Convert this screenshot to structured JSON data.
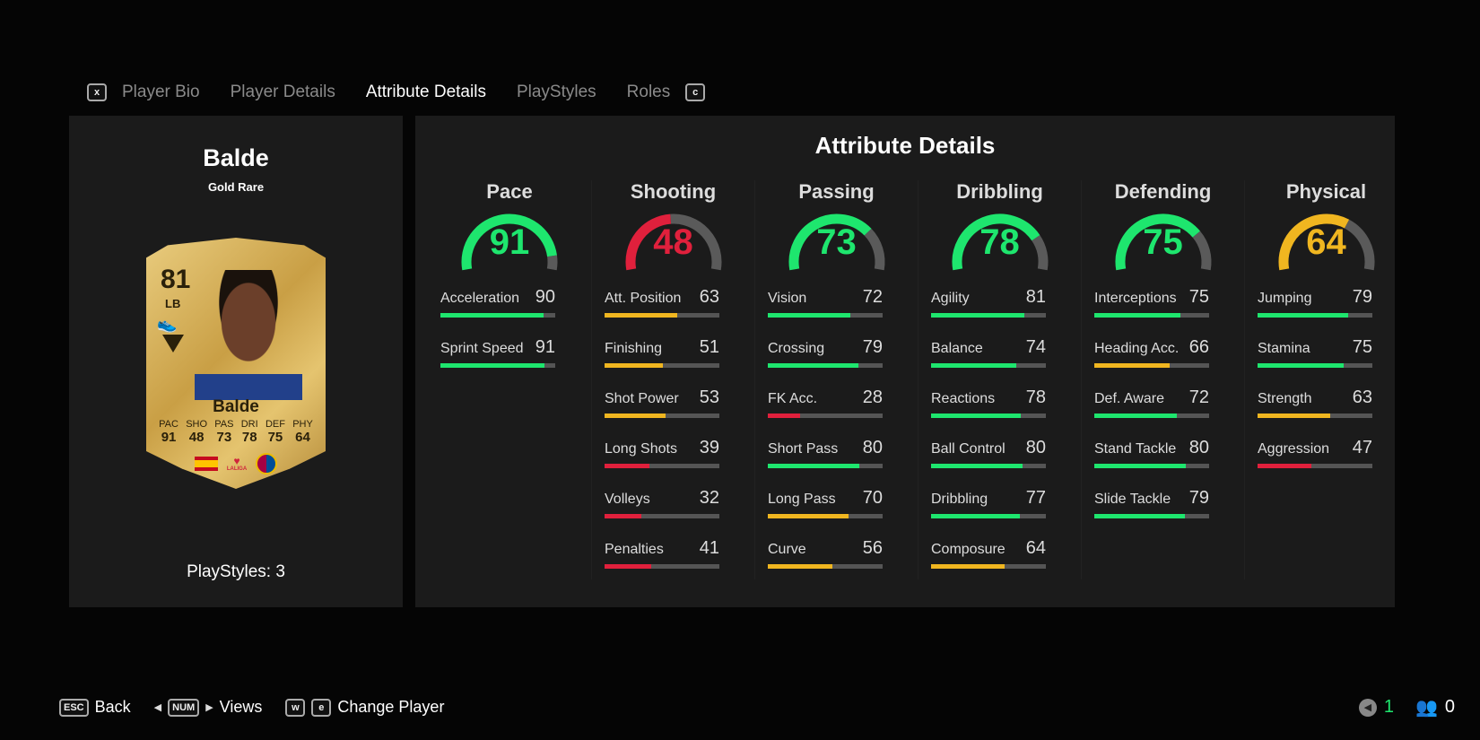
{
  "tabs": {
    "prev_key": "x",
    "next_key": "c",
    "items": [
      {
        "label": "Player Bio"
      },
      {
        "label": "Player Details"
      },
      {
        "label": "Attribute Details",
        "active": true
      },
      {
        "label": "PlayStyles"
      },
      {
        "label": "Roles"
      }
    ]
  },
  "player": {
    "name": "Balde",
    "rarity": "Gold Rare",
    "playstyles": "PlayStyles: 3",
    "card": {
      "overall": "81",
      "position": "LB",
      "name": "Balde",
      "stats": [
        {
          "k": "PAC",
          "v": "91"
        },
        {
          "k": "SHO",
          "v": "48"
        },
        {
          "k": "PAS",
          "v": "73"
        },
        {
          "k": "DRI",
          "v": "78"
        },
        {
          "k": "DEF",
          "v": "75"
        },
        {
          "k": "PHY",
          "v": "64"
        }
      ],
      "league": "LALIGA"
    }
  },
  "panel_title": "Attribute Details",
  "colors": {
    "green": "#1ee66e",
    "yellow": "#f0b620",
    "red": "#e0203c",
    "track": "#555555"
  },
  "categories": [
    {
      "name": "Pace",
      "value": 91,
      "attrs": [
        {
          "label": "Acceleration",
          "value": 90
        },
        {
          "label": "Sprint Speed",
          "value": 91
        }
      ]
    },
    {
      "name": "Shooting",
      "value": 48,
      "attrs": [
        {
          "label": "Att. Position",
          "value": 63
        },
        {
          "label": "Finishing",
          "value": 51
        },
        {
          "label": "Shot Power",
          "value": 53
        },
        {
          "label": "Long Shots",
          "value": 39
        },
        {
          "label": "Volleys",
          "value": 32
        },
        {
          "label": "Penalties",
          "value": 41
        }
      ]
    },
    {
      "name": "Passing",
      "value": 73,
      "attrs": [
        {
          "label": "Vision",
          "value": 72
        },
        {
          "label": "Crossing",
          "value": 79
        },
        {
          "label": "FK Acc.",
          "value": 28
        },
        {
          "label": "Short Pass",
          "value": 80
        },
        {
          "label": "Long Pass",
          "value": 70
        },
        {
          "label": "Curve",
          "value": 56
        }
      ]
    },
    {
      "name": "Dribbling",
      "value": 78,
      "attrs": [
        {
          "label": "Agility",
          "value": 81
        },
        {
          "label": "Balance",
          "value": 74
        },
        {
          "label": "Reactions",
          "value": 78
        },
        {
          "label": "Ball Control",
          "value": 80
        },
        {
          "label": "Dribbling",
          "value": 77
        },
        {
          "label": "Composure",
          "value": 64
        }
      ]
    },
    {
      "name": "Defending",
      "value": 75,
      "attrs": [
        {
          "label": "Interceptions",
          "value": 75
        },
        {
          "label": "Heading Acc.",
          "value": 66
        },
        {
          "label": "Def. Aware",
          "value": 72
        },
        {
          "label": "Stand Tackle",
          "value": 80
        },
        {
          "label": "Slide Tackle",
          "value": 79
        }
      ]
    },
    {
      "name": "Physical",
      "value": 64,
      "attrs": [
        {
          "label": "Jumping",
          "value": 79
        },
        {
          "label": "Stamina",
          "value": 75
        },
        {
          "label": "Strength",
          "value": 63
        },
        {
          "label": "Aggression",
          "value": 47
        }
      ]
    }
  ],
  "footer": {
    "back_key": "ESC",
    "back": "Back",
    "views_key": "NUM",
    "views": "Views",
    "prev_player_key": "w",
    "next_player_key": "e",
    "change": "Change Player"
  },
  "status": {
    "notifications": "1",
    "friends": "0"
  }
}
